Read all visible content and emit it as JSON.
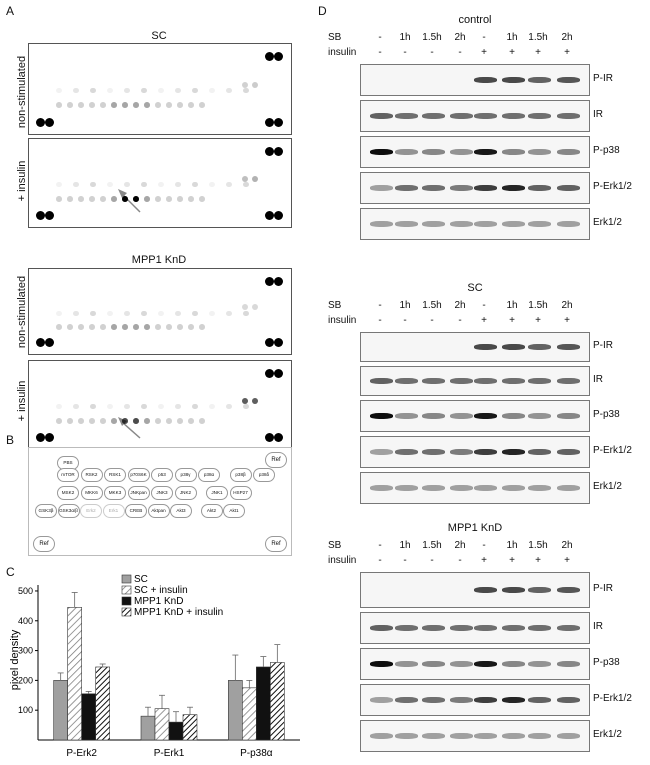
{
  "panels": {
    "A": "A",
    "B": "B",
    "C": "C",
    "D": "D"
  },
  "panelA": {
    "sections": [
      {
        "title": "SC",
        "rows": [
          "non-stimulated",
          "+ insulin"
        ]
      },
      {
        "title": "MPP1 KnD",
        "rows": [
          "non-stimulated",
          "+ insulin"
        ]
      }
    ]
  },
  "panelB": {
    "ref": "Ref",
    "row1": [
      "PBS"
    ],
    "row2": [
      "mTOR",
      "RSK2",
      "RSK1",
      "p70S6K",
      "p53",
      "p38γ",
      "p38α",
      "p38β",
      "p38δ"
    ],
    "row3": [
      "MSK2",
      "MKK6",
      "MKK3",
      "JNKpan",
      "JNK3",
      "JNK2",
      "JNK1",
      "HSP27"
    ],
    "row4": [
      "GSK3β",
      "GSK3α/β",
      "Erk2",
      "Erk1",
      "CREB",
      "Aktpan",
      "Akt3",
      "Akt2",
      "Akt1"
    ]
  },
  "chart_data": {
    "type": "bar",
    "categories": [
      "P-Erk2",
      "P-Erk1",
      "P-p38α"
    ],
    "series": [
      {
        "name": "SC",
        "values": [
          200,
          80,
          200
        ],
        "errors": [
          25,
          30,
          85
        ]
      },
      {
        "name": "SC + insulin",
        "values": [
          445,
          105,
          175
        ],
        "errors": [
          50,
          45,
          25
        ]
      },
      {
        "name": "MPP1 KnD",
        "values": [
          155,
          60,
          245
        ],
        "errors": [
          8,
          35,
          35
        ]
      },
      {
        "name": "MPP1 KnD + insulin",
        "values": [
          245,
          85,
          260
        ],
        "errors": [
          10,
          25,
          60
        ]
      }
    ],
    "ylabel": "pixel density",
    "yticks": [
      100,
      200,
      300,
      400,
      500
    ],
    "ylim": [
      0,
      520
    ],
    "legend": "top-right",
    "colors": [
      "#a0a0a0",
      "hatch-light",
      "#111111",
      "hatch-dark"
    ]
  },
  "panelD": {
    "sb_label": "SB",
    "insulin_label": "insulin",
    "sb_values": [
      "-",
      "1h",
      "1.5h",
      "2h",
      "-",
      "1h",
      "1.5h",
      "2h"
    ],
    "insulin_values": [
      "-",
      "-",
      "-",
      "-",
      "+",
      "+",
      "+",
      "+"
    ],
    "groups": [
      {
        "title": "control",
        "blots": [
          "P-IR",
          "IR",
          "P-p38",
          "P-Erk1/2",
          "Erk1/2"
        ]
      },
      {
        "title": "SC",
        "blots": [
          "P-IR",
          "IR",
          "P-p38",
          "P-Erk1/2",
          "Erk1/2"
        ]
      },
      {
        "title": "MPP1 KnD",
        "blots": [
          "P-IR",
          "IR",
          "P-p38",
          "P-Erk1/2",
          "Erk1/2"
        ]
      }
    ]
  }
}
